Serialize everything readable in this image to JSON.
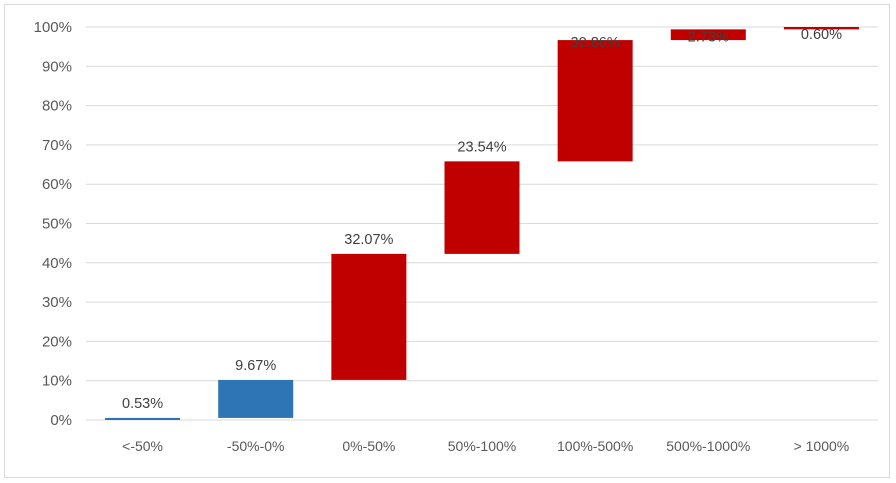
{
  "chart_data": {
    "type": "bar",
    "subtype": "waterfall",
    "title": "",
    "xlabel": "",
    "ylabel": "",
    "ylim": [
      0,
      100
    ],
    "yticks": [
      "0%",
      "10%",
      "20%",
      "30%",
      "40%",
      "50%",
      "60%",
      "70%",
      "80%",
      "90%",
      "100%"
    ],
    "grid": true,
    "legend": "none",
    "categories": [
      "<-50%",
      "-50%-0%",
      "0%-50%",
      "50%-100%",
      "100%-500%",
      "500%-1000%",
      "> 1000%"
    ],
    "values": [
      0.53,
      9.67,
      32.07,
      23.54,
      30.86,
      2.73,
      0.6
    ],
    "labels": [
      "0.53%",
      "9.67%",
      "32.07%",
      "23.54%",
      "30.86%",
      "2.73%",
      "0.60%"
    ],
    "colors": [
      "#2e75b6",
      "#2e75b6",
      "#c00000",
      "#c00000",
      "#c00000",
      "#c00000",
      "#c00000"
    ],
    "gridline_color": "#d9d9d9"
  }
}
